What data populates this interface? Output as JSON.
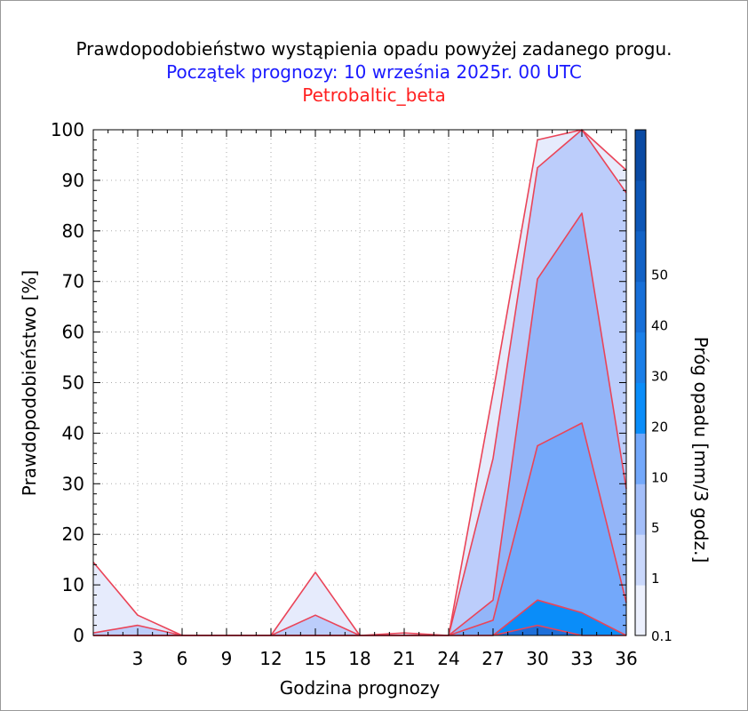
{
  "chart_data": {
    "type": "area",
    "title": "Prawdopodobieństwo wystąpienia opadu powyżej zadanego progu.",
    "subtitle": "Początek prognozy: 10 września 2025r. 00 UTC",
    "model": "Petrobaltic_beta",
    "xlabel": "Godzina prognozy",
    "ylabel": "Prawdopodobieństwo [%]",
    "colorbar_label": "Próg opadu [mm/3 godz.]",
    "xlim": [
      0,
      36
    ],
    "ylim": [
      0,
      100
    ],
    "xticks": [
      3,
      6,
      9,
      12,
      15,
      18,
      21,
      24,
      27,
      30,
      33,
      36
    ],
    "yticks": [
      0,
      10,
      20,
      30,
      40,
      50,
      60,
      70,
      80,
      90,
      100
    ],
    "grid": true,
    "x": [
      0,
      3,
      6,
      9,
      12,
      15,
      18,
      21,
      24,
      27,
      30,
      33,
      36
    ],
    "series": [
      {
        "threshold": 0.1,
        "color": "#e6ebfc",
        "values": [
          14.5,
          4,
          0,
          0,
          0,
          12.5,
          0,
          0.5,
          0,
          48,
          98,
          100,
          92
        ]
      },
      {
        "threshold": 1,
        "color": "#bccdfb",
        "values": [
          0.5,
          2,
          0,
          0,
          0,
          4,
          0,
          0,
          0,
          35,
          92.5,
          100,
          87.5
        ]
      },
      {
        "threshold": 5,
        "color": "#93b5f8",
        "values": [
          0,
          0,
          0,
          0,
          0,
          0,
          0,
          0,
          0,
          7,
          70.5,
          83.5,
          29
        ]
      },
      {
        "threshold": 10,
        "color": "#73a8fa",
        "values": [
          0,
          0,
          0,
          0,
          0,
          0,
          0,
          0,
          0,
          3,
          37.5,
          42,
          6.5
        ]
      },
      {
        "threshold": 20,
        "color": "#0a8df9",
        "values": [
          0,
          0,
          0,
          0,
          0,
          0,
          0,
          0,
          0,
          0,
          7,
          4.5,
          0
        ]
      },
      {
        "threshold": 30,
        "color": "#1e6fd9",
        "values": [
          0,
          0,
          0,
          0,
          0,
          0,
          0,
          0,
          0,
          0,
          2,
          0,
          0
        ]
      }
    ],
    "colorbar": {
      "tick_labels": [
        "0.1",
        "1",
        "5",
        "10",
        "20",
        "30",
        "40",
        "50"
      ],
      "colors": [
        "#ecf0fd",
        "#c9d7fb",
        "#a3bef9",
        "#73a8fa",
        "#0a8df9",
        "#1a7fe8",
        "#176fd8",
        "#1262c6",
        "#0d56b6",
        "#0a4aa3"
      ]
    },
    "line_color": "#ea4458"
  }
}
